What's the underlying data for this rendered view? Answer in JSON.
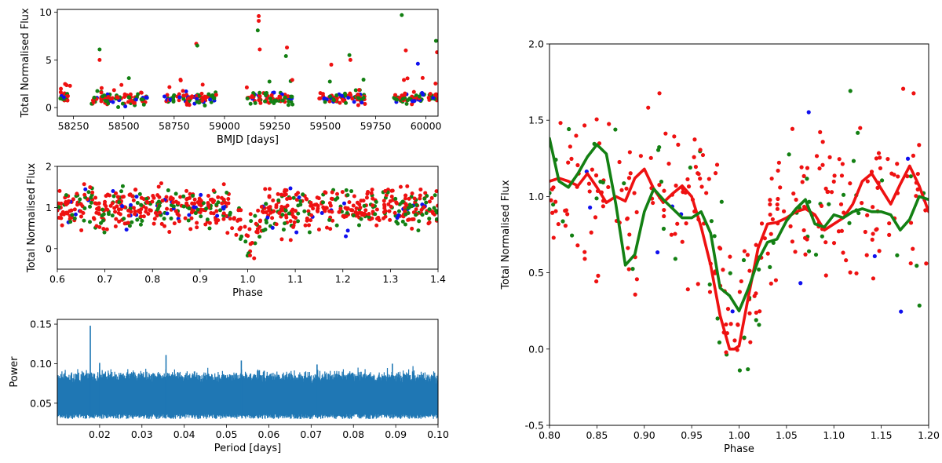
{
  "chart_data": [
    {
      "id": "lightcurve",
      "type": "scatter",
      "xlabel": "BMJD [days]",
      "ylabel": "Total Normalised Flux",
      "xlim": [
        58170,
        60060
      ],
      "ylim": [
        -0.9,
        10.3
      ],
      "xticks": [
        58250,
        58500,
        58750,
        59000,
        59250,
        59500,
        59750,
        60000
      ],
      "yticks": [
        0,
        5,
        10
      ],
      "observing_seasons": [
        {
          "start": 58180,
          "end": 58240,
          "center": 1.0
        },
        {
          "start": 58340,
          "end": 58620,
          "center": 0.9
        },
        {
          "start": 58700,
          "end": 58960,
          "center": 1.0
        },
        {
          "start": 59110,
          "end": 59340,
          "center": 1.0
        },
        {
          "start": 59470,
          "end": 59700,
          "center": 0.9
        },
        {
          "start": 59840,
          "end": 60060,
          "center": 1.0
        }
      ],
      "outliers": [
        {
          "x": 58380,
          "y": 6.1,
          "color": "green"
        },
        {
          "x": 58380,
          "y": 5.0,
          "color": "red"
        },
        {
          "x": 58860,
          "y": 6.7,
          "color": "red"
        },
        {
          "x": 58865,
          "y": 6.5,
          "color": "green"
        },
        {
          "x": 59170,
          "y": 9.6,
          "color": "red"
        },
        {
          "x": 59170,
          "y": 9.1,
          "color": "red"
        },
        {
          "x": 59165,
          "y": 8.1,
          "color": "green"
        },
        {
          "x": 59175,
          "y": 6.1,
          "color": "red"
        },
        {
          "x": 59310,
          "y": 6.3,
          "color": "red"
        },
        {
          "x": 59305,
          "y": 5.4,
          "color": "green"
        },
        {
          "x": 59620,
          "y": 5.5,
          "color": "green"
        },
        {
          "x": 59625,
          "y": 5.0,
          "color": "red"
        },
        {
          "x": 59880,
          "y": 9.7,
          "color": "green"
        },
        {
          "x": 59960,
          "y": 4.6,
          "color": "blue"
        },
        {
          "x": 60050,
          "y": 7.0,
          "color": "green"
        },
        {
          "x": 60055,
          "y": 5.8,
          "color": "red"
        },
        {
          "x": 59530,
          "y": 4.5,
          "color": "red"
        },
        {
          "x": 59900,
          "y": 6.0,
          "color": "red"
        }
      ]
    },
    {
      "id": "folded-wide",
      "type": "scatter",
      "xlabel": "Phase",
      "ylabel": "Total Normalised Flux",
      "xlim": [
        0.6,
        1.4
      ],
      "ylim": [
        -0.5,
        2.0
      ],
      "xticks": [
        0.6,
        0.7,
        0.8,
        0.9,
        1.0,
        1.1,
        1.2,
        1.3,
        1.4
      ],
      "yticks": [
        0,
        1,
        2
      ],
      "dip": {
        "center": 1.0,
        "width": 0.025,
        "depth": 0.9
      }
    },
    {
      "id": "periodogram",
      "type": "line",
      "xlabel": "Period [days]",
      "ylabel": "Power",
      "xlim": [
        0.01,
        0.1
      ],
      "ylim": [
        0.023,
        0.156
      ],
      "xticks": [
        0.02,
        0.03,
        0.04,
        0.05,
        0.06,
        0.07,
        0.08,
        0.09,
        0.1
      ],
      "yticks": [
        0.05,
        0.1,
        0.15
      ],
      "color": "#1f77b4",
      "peaks": [
        {
          "period": 0.0178,
          "power": 0.148
        },
        {
          "period": 0.0357,
          "power": 0.111
        },
        {
          "period": 0.0535,
          "power": 0.104
        },
        {
          "period": 0.0714,
          "power": 0.099
        },
        {
          "period": 0.0892,
          "power": 0.1
        },
        {
          "period": 0.02,
          "power": 0.101
        }
      ],
      "noise_floor": {
        "low": 0.036,
        "high": 0.082
      }
    },
    {
      "id": "folded-zoom",
      "type": "scatter",
      "xlabel": "Phase",
      "ylabel": "Total Normalised Flux",
      "xlim": [
        0.8,
        1.2
      ],
      "ylim": [
        -0.5,
        2.0
      ],
      "xticks": [
        0.8,
        0.85,
        0.9,
        0.95,
        1.0,
        1.05,
        1.1,
        1.15,
        1.2
      ],
      "yticks": [
        -0.5,
        0.0,
        0.5,
        1.0,
        1.5,
        2.0
      ],
      "series": [
        {
          "name": "red-smooth",
          "color": "#ee1111",
          "x": [
            0.8,
            0.81,
            0.82,
            0.83,
            0.84,
            0.85,
            0.86,
            0.87,
            0.88,
            0.89,
            0.9,
            0.91,
            0.92,
            0.93,
            0.94,
            0.95,
            0.96,
            0.97,
            0.98,
            0.99,
            0.995,
            1.0,
            1.01,
            1.02,
            1.03,
            1.04,
            1.05,
            1.06,
            1.07,
            1.08,
            1.09,
            1.1,
            1.11,
            1.12,
            1.13,
            1.14,
            1.15,
            1.16,
            1.17,
            1.18,
            1.19,
            1.2
          ],
          "y": [
            1.1,
            1.12,
            1.1,
            1.07,
            1.15,
            1.06,
            0.96,
            1.0,
            0.97,
            1.12,
            1.18,
            1.05,
            0.96,
            1.02,
            1.07,
            1.0,
            0.8,
            0.55,
            0.22,
            0.0,
            0.0,
            0.02,
            0.35,
            0.66,
            0.82,
            0.83,
            0.86,
            0.9,
            0.92,
            0.88,
            0.78,
            0.82,
            0.86,
            0.95,
            1.1,
            1.15,
            1.05,
            0.95,
            1.08,
            1.2,
            1.07,
            0.9
          ]
        },
        {
          "name": "green-smooth",
          "color": "#138013",
          "x": [
            0.8,
            0.81,
            0.82,
            0.83,
            0.84,
            0.85,
            0.86,
            0.87,
            0.875,
            0.88,
            0.89,
            0.9,
            0.91,
            0.92,
            0.93,
            0.94,
            0.95,
            0.96,
            0.97,
            0.98,
            0.99,
            1.0,
            1.01,
            1.02,
            1.03,
            1.04,
            1.05,
            1.06,
            1.07,
            1.08,
            1.09,
            1.1,
            1.11,
            1.12,
            1.13,
            1.14,
            1.15,
            1.16,
            1.17,
            1.18,
            1.19,
            1.2
          ],
          "y": [
            1.38,
            1.1,
            1.06,
            1.15,
            1.26,
            1.34,
            1.28,
            0.95,
            0.75,
            0.55,
            0.62,
            0.9,
            1.05,
            0.98,
            0.92,
            0.86,
            0.86,
            0.9,
            0.76,
            0.4,
            0.35,
            0.25,
            0.4,
            0.58,
            0.7,
            0.72,
            0.84,
            0.92,
            0.98,
            0.82,
            0.8,
            0.88,
            0.86,
            0.9,
            0.92,
            0.9,
            0.9,
            0.88,
            0.78,
            0.85,
            1.0,
            0.98
          ]
        }
      ]
    }
  ]
}
